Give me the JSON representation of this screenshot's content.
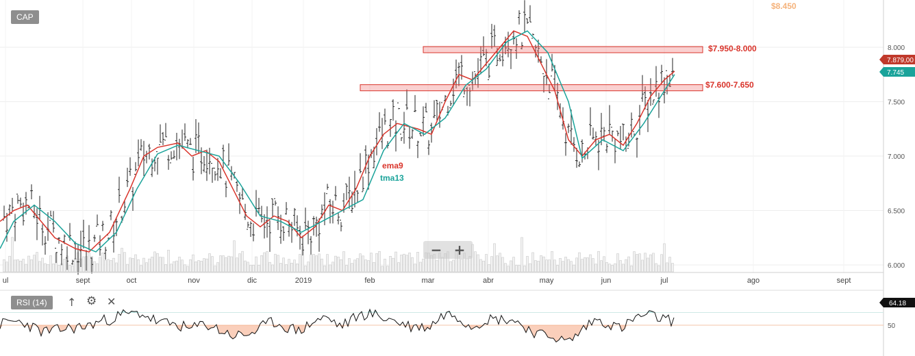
{
  "symbol": "CAP",
  "indicator": {
    "label": "RSI (14)",
    "value": "64.18",
    "level": "50"
  },
  "price_axis": {
    "ticks": [
      "8.000",
      "7.500",
      "7.000",
      "6.500",
      "6.000"
    ],
    "tick_values": [
      8.0,
      7.5,
      7.0,
      6.5,
      6.0
    ]
  },
  "last_price": {
    "label": "7.879,00",
    "value": 7.879,
    "color": "#c0392b"
  },
  "tma_last": {
    "label": "7.745",
    "value": 7.745,
    "color": "#1aa39a"
  },
  "time_axis": {
    "labels": [
      "ul",
      "sept",
      "oct",
      "nov",
      "dic",
      "2019",
      "feb",
      "mar",
      "abr",
      "may",
      "jun",
      "jul",
      "ago",
      "sept"
    ]
  },
  "annotations": {
    "resistance_high": {
      "label": "$8.450",
      "value": 8.45,
      "color": "#f5b27a"
    },
    "zone_upper": {
      "label": "$7.950-8.000",
      "low": 7.95,
      "high": 8.0,
      "color": "#d9342b"
    },
    "zone_lower": {
      "label": "$7.600-7.650",
      "low": 7.6,
      "high": 7.65,
      "color": "#d9342b"
    },
    "ema_label": {
      "label": "ema9",
      "color": "#d9342b"
    },
    "tma_label": {
      "label": "tma13",
      "color": "#1aa39a"
    }
  },
  "controls": {
    "zoom_out": "−",
    "zoom_in": "+"
  },
  "icons": [
    "up-arrow-icon",
    "gear-icon",
    "close-icon"
  ],
  "chart_data": {
    "type": "line",
    "title": "",
    "series": [
      {
        "name": "ema9",
        "color": "#d9342b",
        "points": [
          [
            0,
            6.4
          ],
          [
            20,
            6.5
          ],
          [
            40,
            6.55
          ],
          [
            60,
            6.4
          ],
          [
            80,
            6.25
          ],
          [
            110,
            6.15
          ],
          [
            130,
            6.12
          ],
          [
            160,
            6.3
          ],
          [
            190,
            6.7
          ],
          [
            210,
            7.0
          ],
          [
            230,
            7.08
          ],
          [
            260,
            7.12
          ],
          [
            280,
            7.0
          ],
          [
            300,
            7.05
          ],
          [
            320,
            6.95
          ],
          [
            340,
            6.7
          ],
          [
            360,
            6.45
          ],
          [
            380,
            6.35
          ],
          [
            400,
            6.45
          ],
          [
            420,
            6.4
          ],
          [
            440,
            6.25
          ],
          [
            460,
            6.35
          ],
          [
            480,
            6.55
          ],
          [
            500,
            6.5
          ],
          [
            520,
            6.7
          ],
          [
            540,
            7.0
          ],
          [
            560,
            7.2
          ],
          [
            580,
            7.3
          ],
          [
            610,
            7.25
          ],
          [
            630,
            7.2
          ],
          [
            650,
            7.5
          ],
          [
            670,
            7.75
          ],
          [
            690,
            7.7
          ],
          [
            710,
            7.85
          ],
          [
            730,
            8.0
          ],
          [
            750,
            8.15
          ],
          [
            770,
            8.1
          ],
          [
            790,
            7.85
          ],
          [
            810,
            7.6
          ],
          [
            830,
            7.15
          ],
          [
            850,
            7.0
          ],
          [
            870,
            7.15
          ],
          [
            890,
            7.2
          ],
          [
            910,
            7.1
          ],
          [
            930,
            7.3
          ],
          [
            950,
            7.55
          ],
          [
            970,
            7.7
          ],
          [
            985,
            7.78
          ]
        ]
      },
      {
        "name": "tma13",
        "color": "#1aa39a",
        "points": [
          [
            0,
            6.15
          ],
          [
            20,
            6.4
          ],
          [
            50,
            6.55
          ],
          [
            80,
            6.4
          ],
          [
            110,
            6.2
          ],
          [
            140,
            6.12
          ],
          [
            170,
            6.3
          ],
          [
            200,
            6.7
          ],
          [
            230,
            7.02
          ],
          [
            260,
            7.1
          ],
          [
            290,
            7.05
          ],
          [
            320,
            7.0
          ],
          [
            350,
            6.75
          ],
          [
            380,
            6.45
          ],
          [
            410,
            6.4
          ],
          [
            440,
            6.3
          ],
          [
            470,
            6.4
          ],
          [
            500,
            6.5
          ],
          [
            530,
            6.6
          ],
          [
            560,
            7.05
          ],
          [
            590,
            7.3
          ],
          [
            620,
            7.2
          ],
          [
            650,
            7.35
          ],
          [
            680,
            7.65
          ],
          [
            710,
            7.8
          ],
          [
            740,
            8.05
          ],
          [
            770,
            8.15
          ],
          [
            800,
            7.95
          ],
          [
            830,
            7.5
          ],
          [
            850,
            6.98
          ],
          [
            880,
            7.15
          ],
          [
            910,
            7.05
          ],
          [
            940,
            7.3
          ],
          [
            970,
            7.6
          ],
          [
            985,
            7.75
          ]
        ]
      }
    ],
    "ylim": [
      5.95,
      8.5
    ],
    "xlabel": "",
    "ylabel": ""
  }
}
